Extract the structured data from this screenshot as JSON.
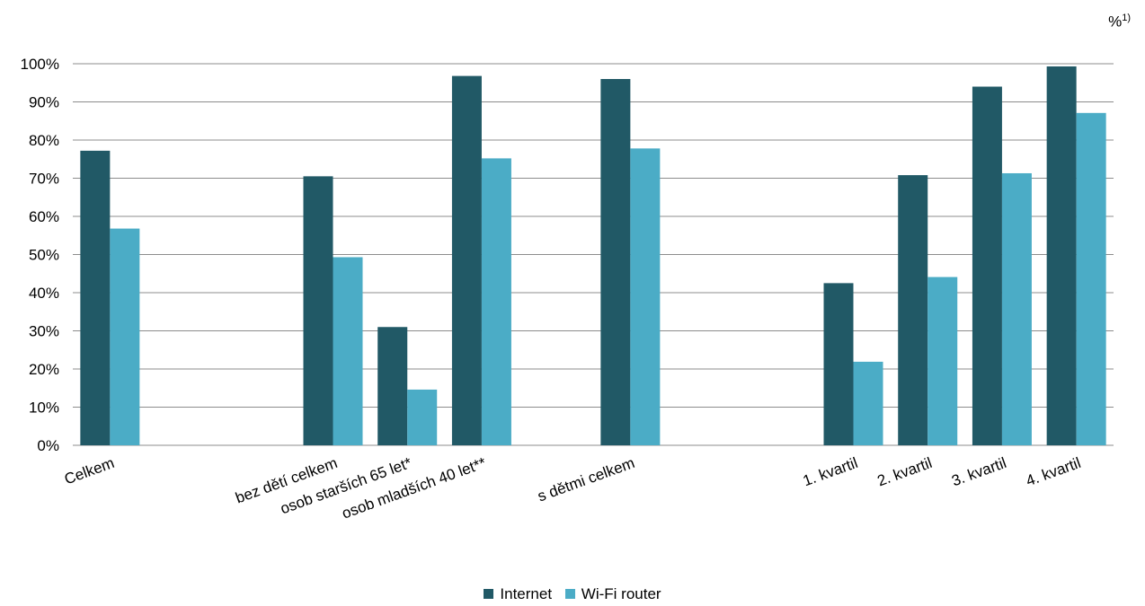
{
  "chart_data": {
    "type": "bar",
    "unit_label": "%",
    "unit_footnote": "1)",
    "categories": [
      "Celkem",
      "",
      "",
      "bez dětí celkem",
      "osob starších 65 let*",
      "osob mladších 40 let**",
      "",
      "s dětmi celkem",
      "",
      "",
      "1. kvartil",
      "2. kvartil",
      "3. kvartil",
      "4. kvartil"
    ],
    "series": [
      {
        "name": "Internet",
        "color": "#215966",
        "values": [
          77.2,
          null,
          null,
          70.5,
          31.0,
          96.8,
          null,
          96.0,
          null,
          null,
          42.5,
          70.8,
          94.0,
          99.3
        ]
      },
      {
        "name": "Wi-Fi router",
        "color": "#4bacc6",
        "values": [
          56.8,
          null,
          null,
          49.3,
          14.6,
          75.2,
          null,
          77.8,
          null,
          null,
          21.9,
          44.1,
          71.3,
          87.1
        ]
      }
    ],
    "ylim": [
      0,
      100
    ],
    "yticks": [
      "0%",
      "10%",
      "20%",
      "30%",
      "40%",
      "50%",
      "60%",
      "70%",
      "80%",
      "90%",
      "100%"
    ],
    "grid": true,
    "legend_position": "bottom"
  }
}
